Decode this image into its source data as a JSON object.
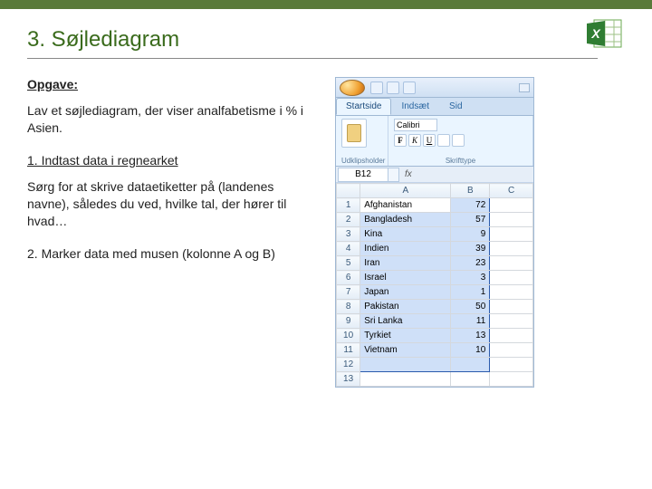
{
  "colors": {
    "accent_green": "#3a6b1c",
    "topbar": "#5a7a3a",
    "excel_chrome": "#cfe0f3",
    "ribbon_bg": "#eaf5ff",
    "selection_fill": "#cfe0f8",
    "selection_border": "#2a5aac",
    "header_gradient_top": "#f6fafd",
    "header_gradient_bottom": "#e4edf7",
    "grid_border": "#d4d8dd"
  },
  "title": "3. Søjlediagram",
  "subhead": "Opgave:",
  "task_text": "Lav et søjlediagram, der viser analfabetisme i % i Asien.",
  "step1": "1. Indtast data i regnearket",
  "step1_detail": "Sørg for at skrive dataetiketter på (landenes navne), således du ved, hvilke tal, der hører til hvad…",
  "step2": "2. Marker data med musen (kolonne A og B)",
  "excel": {
    "tabs": [
      "Startside",
      "Indsæt",
      "Sid"
    ],
    "active_tab": 0,
    "ribbon_groups": {
      "clipboard_label": "Udklipsholder",
      "font_label": "Skrifttype",
      "font_name": "Calibri",
      "bold": "F",
      "italic": "K",
      "underline": "U"
    },
    "name_box": "B12",
    "fx_label": "fx",
    "columns": [
      "A",
      "B",
      "C"
    ],
    "rows": [
      {
        "n": 1,
        "a": "Afghanistan",
        "b": 72
      },
      {
        "n": 2,
        "a": "Bangladesh",
        "b": 57
      },
      {
        "n": 3,
        "a": "Kina",
        "b": 9
      },
      {
        "n": 4,
        "a": "Indien",
        "b": 39
      },
      {
        "n": 5,
        "a": "Iran",
        "b": 23
      },
      {
        "n": 6,
        "a": "Israel",
        "b": 3
      },
      {
        "n": 7,
        "a": "Japan",
        "b": 1
      },
      {
        "n": 8,
        "a": "Pakistan",
        "b": 50
      },
      {
        "n": 9,
        "a": "Sri Lanka",
        "b": 11
      },
      {
        "n": 10,
        "a": "Tyrkiet",
        "b": 13
      },
      {
        "n": 11,
        "a": "Vietnam",
        "b": 10
      },
      {
        "n": 12,
        "a": "",
        "b": ""
      }
    ],
    "blank_row": 13,
    "selection": {
      "from_row": 1,
      "to_row": 12,
      "cols": [
        "A",
        "B"
      ]
    }
  }
}
